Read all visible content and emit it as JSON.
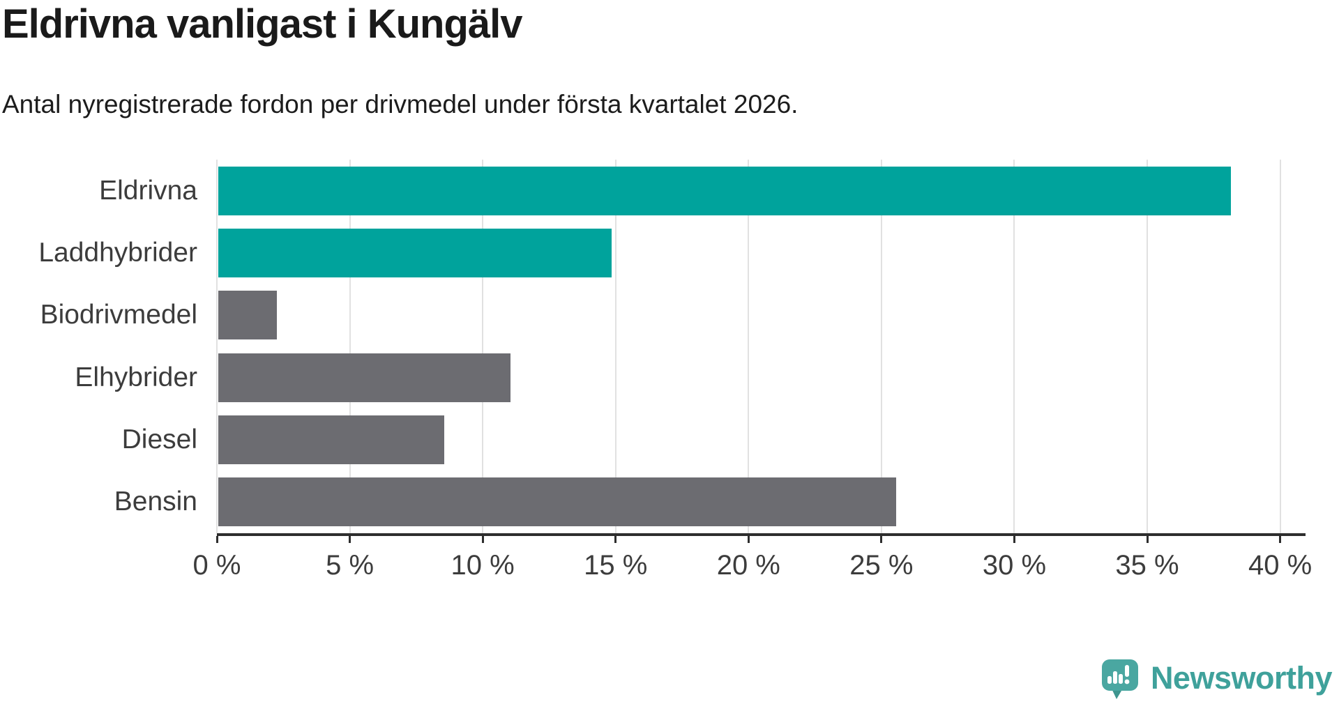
{
  "header": {
    "title": "Eldrivna vanligast i Kungälv",
    "subtitle": "Antal nyregistrerade fordon per drivmedel under första kvartalet 2026."
  },
  "chart_data": {
    "type": "bar",
    "orientation": "horizontal",
    "title": "Eldrivna vanligast i Kungälv",
    "subtitle": "Antal nyregistrerade fordon per drivmedel under första kvartalet 2026.",
    "categories": [
      "Eldrivna",
      "Laddhybrider",
      "Biodrivmedel",
      "Elhybrider",
      "Diesel",
      "Bensin"
    ],
    "values": [
      38.1,
      14.8,
      2.2,
      11.0,
      8.5,
      25.5
    ],
    "unit": "%",
    "bar_colors": [
      "#00a39c",
      "#00a39c",
      "#6c6c71",
      "#6c6c71",
      "#6c6c71",
      "#6c6c71"
    ],
    "highlight_color": "#00a39c",
    "default_color": "#6c6c71",
    "xlim": [
      0,
      40
    ],
    "x_ticks": [
      0,
      5,
      10,
      15,
      20,
      25,
      30,
      35,
      40
    ],
    "x_tick_labels": [
      "0 %",
      "5 %",
      "10 %",
      "15 %",
      "20 %",
      "25 %",
      "30 %",
      "35 %",
      "40 %"
    ],
    "grid": "vertical-gridlines-on",
    "legend": "none"
  },
  "footer": {
    "brand": "Newsworthy"
  }
}
